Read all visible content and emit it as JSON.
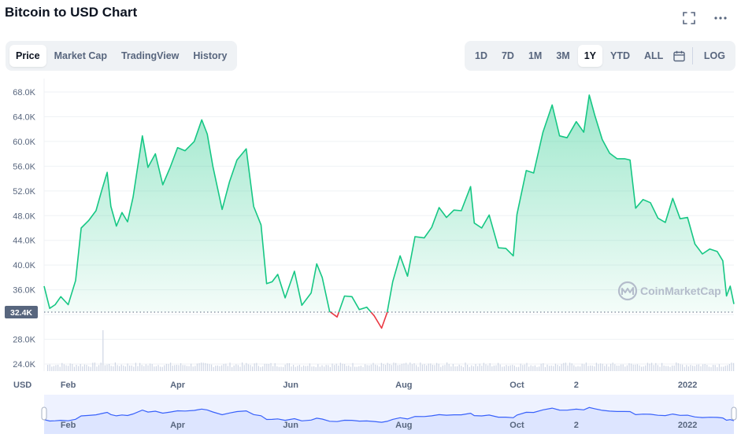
{
  "header": {
    "title": "Bitcoin to USD Chart",
    "fullscreen_icon": "expand-icon",
    "more_icon": "more-horizontal-icon"
  },
  "chart_tabs": {
    "items": [
      {
        "label": "Price",
        "active": true
      },
      {
        "label": "Market Cap",
        "active": false
      },
      {
        "label": "TradingView",
        "active": false
      },
      {
        "label": "History",
        "active": false
      }
    ]
  },
  "range_tabs": {
    "items": [
      {
        "label": "1D",
        "active": false
      },
      {
        "label": "7D",
        "active": false
      },
      {
        "label": "1M",
        "active": false
      },
      {
        "label": "3M",
        "active": false
      },
      {
        "label": "1Y",
        "active": true
      },
      {
        "label": "YTD",
        "active": false
      },
      {
        "label": "ALL",
        "active": false
      }
    ],
    "calendar_icon": "calendar-icon",
    "log_label": "LOG"
  },
  "chart": {
    "currency_label": "USD",
    "watermark": "CoinMarketCap",
    "current_price_label": "32.4K",
    "colors": {
      "up": "#16c784",
      "down": "#ea3943",
      "fill_top": "#b6ecd1",
      "navigator_line": "#3861fb",
      "navigator_fill": "#dde5ff"
    }
  },
  "chart_data": {
    "type": "area",
    "title": "Bitcoin to USD Chart",
    "xlabel": "",
    "ylabel": "USD",
    "ylim": [
      24000,
      70000
    ],
    "y_ticks": [
      "68.0K",
      "64.0K",
      "60.0K",
      "56.0K",
      "52.0K",
      "48.0K",
      "44.0K",
      "40.0K",
      "36.0K",
      "32.0K",
      "28.0K",
      "24.0K"
    ],
    "y_tick_values": [
      68000,
      64000,
      60000,
      56000,
      52000,
      48000,
      44000,
      40000,
      36000,
      32000,
      28000,
      24000
    ],
    "x_ticks": [
      "Feb",
      "Apr",
      "Jun",
      "Aug",
      "Oct",
      "2",
      "2022"
    ],
    "x_tick_dates": [
      "2021-02-01",
      "2021-04-01",
      "2021-06-01",
      "2021-08-01",
      "2021-10-01",
      "2021-11-02",
      "2022-01-01"
    ],
    "baseline": 32400,
    "series": [
      {
        "points": [
          [
            "2021-01-19",
            36600
          ],
          [
            "2021-01-22",
            33000
          ],
          [
            "2021-01-25",
            33600
          ],
          [
            "2021-01-28",
            34900
          ],
          [
            "2021-02-01",
            33600
          ],
          [
            "2021-02-05",
            37500
          ],
          [
            "2021-02-08",
            46000
          ],
          [
            "2021-02-12",
            47200
          ],
          [
            "2021-02-16",
            48800
          ],
          [
            "2021-02-19",
            52000
          ],
          [
            "2021-02-22",
            55000
          ],
          [
            "2021-02-24",
            49500
          ],
          [
            "2021-02-27",
            46300
          ],
          [
            "2021-03-02",
            48500
          ],
          [
            "2021-03-05",
            47000
          ],
          [
            "2021-03-08",
            51000
          ],
          [
            "2021-03-13",
            60900
          ],
          [
            "2021-03-16",
            55800
          ],
          [
            "2021-03-20",
            58000
          ],
          [
            "2021-03-24",
            53000
          ],
          [
            "2021-03-28",
            55800
          ],
          [
            "2021-04-01",
            59000
          ],
          [
            "2021-04-05",
            58500
          ],
          [
            "2021-04-10",
            60000
          ],
          [
            "2021-04-14",
            63500
          ],
          [
            "2021-04-17",
            61200
          ],
          [
            "2021-04-20",
            56000
          ],
          [
            "2021-04-25",
            49000
          ],
          [
            "2021-04-29",
            53500
          ],
          [
            "2021-05-03",
            57000
          ],
          [
            "2021-05-08",
            58800
          ],
          [
            "2021-05-12",
            49500
          ],
          [
            "2021-05-16",
            46500
          ],
          [
            "2021-05-19",
            37000
          ],
          [
            "2021-05-22",
            37300
          ],
          [
            "2021-05-25",
            38500
          ],
          [
            "2021-05-29",
            34700
          ],
          [
            "2021-06-03",
            39000
          ],
          [
            "2021-06-07",
            33500
          ],
          [
            "2021-06-12",
            35500
          ],
          [
            "2021-06-15",
            40200
          ],
          [
            "2021-06-18",
            38000
          ],
          [
            "2021-06-22",
            32500
          ],
          [
            "2021-06-26",
            31600
          ],
          [
            "2021-06-30",
            35000
          ],
          [
            "2021-07-04",
            34900
          ],
          [
            "2021-07-08",
            32800
          ],
          [
            "2021-07-12",
            33200
          ],
          [
            "2021-07-16",
            31800
          ],
          [
            "2021-07-20",
            29800
          ],
          [
            "2021-07-23",
            32300
          ],
          [
            "2021-07-26",
            37300
          ],
          [
            "2021-07-30",
            41500
          ],
          [
            "2021-08-03",
            38200
          ],
          [
            "2021-08-07",
            44600
          ],
          [
            "2021-08-12",
            44400
          ],
          [
            "2021-08-16",
            46100
          ],
          [
            "2021-08-20",
            49300
          ],
          [
            "2021-08-24",
            47700
          ],
          [
            "2021-08-28",
            48900
          ],
          [
            "2021-09-01",
            48800
          ],
          [
            "2021-09-06",
            52700
          ],
          [
            "2021-09-08",
            46800
          ],
          [
            "2021-09-12",
            46000
          ],
          [
            "2021-09-16",
            48100
          ],
          [
            "2021-09-21",
            42800
          ],
          [
            "2021-09-25",
            42700
          ],
          [
            "2021-09-29",
            41500
          ],
          [
            "2021-10-01",
            48200
          ],
          [
            "2021-10-06",
            55300
          ],
          [
            "2021-10-10",
            54900
          ],
          [
            "2021-10-15",
            61500
          ],
          [
            "2021-10-20",
            65900
          ],
          [
            "2021-10-24",
            60900
          ],
          [
            "2021-10-28",
            60600
          ],
          [
            "2021-11-02",
            63200
          ],
          [
            "2021-11-06",
            61500
          ],
          [
            "2021-11-09",
            67500
          ],
          [
            "2021-11-12",
            64200
          ],
          [
            "2021-11-16",
            60300
          ],
          [
            "2021-11-20",
            58100
          ],
          [
            "2021-11-24",
            57200
          ],
          [
            "2021-11-28",
            57200
          ],
          [
            "2021-12-01",
            57000
          ],
          [
            "2021-12-04",
            49200
          ],
          [
            "2021-12-08",
            50600
          ],
          [
            "2021-12-12",
            50100
          ],
          [
            "2021-12-16",
            47600
          ],
          [
            "2021-12-20",
            46900
          ],
          [
            "2021-12-24",
            50800
          ],
          [
            "2021-12-28",
            47500
          ],
          [
            "2022-01-01",
            47700
          ],
          [
            "2022-01-05",
            43400
          ],
          [
            "2022-01-09",
            41800
          ],
          [
            "2022-01-13",
            42600
          ],
          [
            "2022-01-17",
            42200
          ],
          [
            "2022-01-20",
            40700
          ],
          [
            "2022-01-22",
            35000
          ],
          [
            "2022-01-24",
            36600
          ],
          [
            "2022-01-26",
            33700
          ]
        ]
      }
    ],
    "grid": true,
    "legend": "none"
  }
}
